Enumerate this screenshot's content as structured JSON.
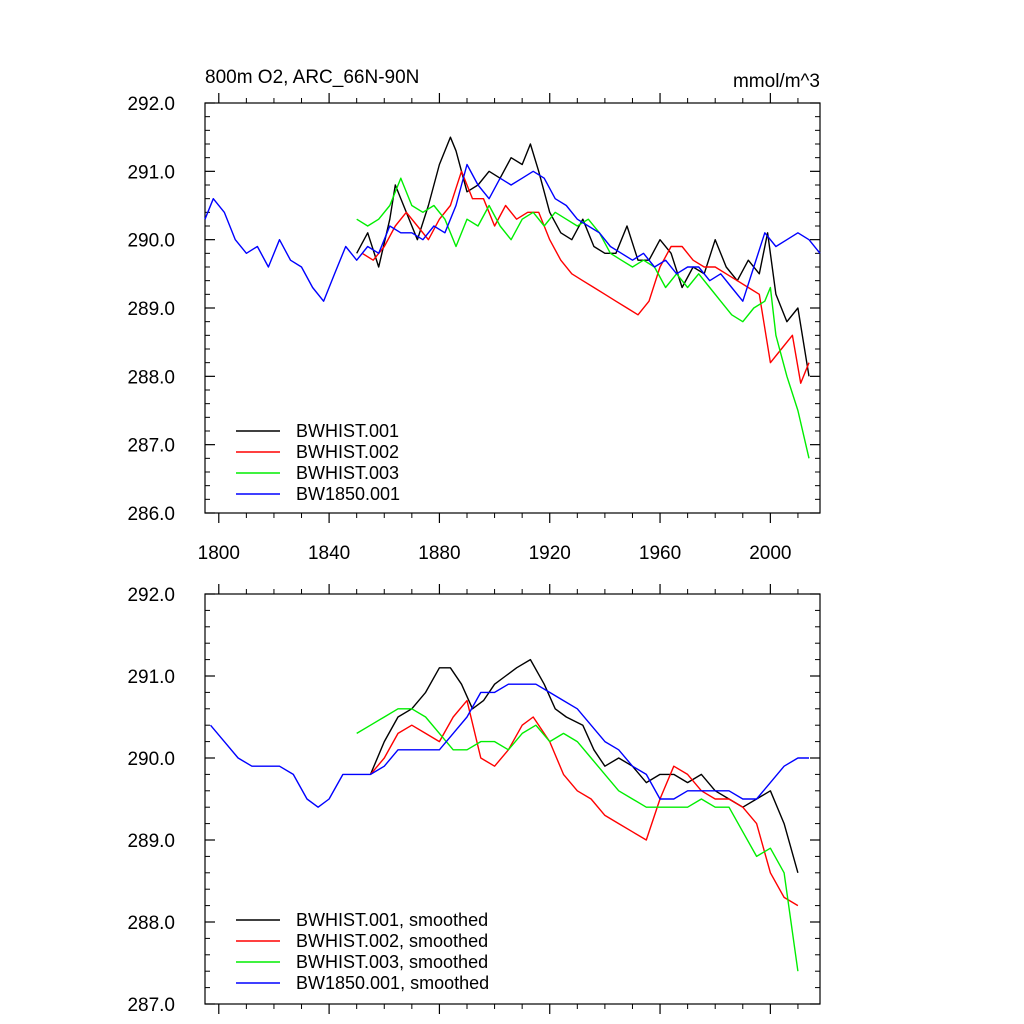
{
  "chart_data": [
    {
      "type": "line",
      "title": "800m O2, ARC_66N-90N",
      "units": "mmol/m^3",
      "xlim": [
        1795,
        2018
      ],
      "ylim": [
        286.0,
        292.0
      ],
      "xticks": [
        1800,
        1840,
        1880,
        1920,
        1960,
        2000
      ],
      "yticks": [
        286.0,
        287.0,
        288.0,
        289.0,
        290.0,
        291.0,
        292.0
      ],
      "x_tick_labels": [
        "1800",
        "1840",
        "1880",
        "1920",
        "1960",
        "2000"
      ],
      "y_tick_labels": [
        "286.0",
        "287.0",
        "288.0",
        "289.0",
        "290.0",
        "291.0",
        "292.0"
      ],
      "legend_position": "bottom-left",
      "series": [
        {
          "name": "BWHIST.001",
          "color": "#000000",
          "x": [
            1850,
            1854,
            1858,
            1862,
            1864,
            1868,
            1872,
            1876,
            1880,
            1884,
            1886,
            1890,
            1894,
            1898,
            1902,
            1906,
            1910,
            1913,
            1916,
            1920,
            1924,
            1928,
            1932,
            1936,
            1940,
            1944,
            1948,
            1952,
            1956,
            1960,
            1964,
            1968,
            1972,
            1976,
            1980,
            1984,
            1988,
            1992,
            1996,
            1999,
            2002,
            2006,
            2010,
            2014
          ],
          "y": [
            289.8,
            290.1,
            289.6,
            290.3,
            290.8,
            290.4,
            290.0,
            290.5,
            291.1,
            291.5,
            291.3,
            290.7,
            290.8,
            291.0,
            290.9,
            291.2,
            291.1,
            291.4,
            291.0,
            290.4,
            290.1,
            290.0,
            290.3,
            289.9,
            289.8,
            289.8,
            290.2,
            289.7,
            289.7,
            290.0,
            289.8,
            289.3,
            289.6,
            289.5,
            290.0,
            289.6,
            289.4,
            289.7,
            289.5,
            290.1,
            289.2,
            288.8,
            289.0,
            288.0
          ]
        },
        {
          "name": "BWHIST.002",
          "color": "#ff0000",
          "x": [
            1852,
            1856,
            1860,
            1864,
            1868,
            1872,
            1876,
            1880,
            1884,
            1888,
            1892,
            1896,
            1900,
            1904,
            1908,
            1912,
            1916,
            1920,
            1924,
            1928,
            1932,
            1936,
            1940,
            1944,
            1948,
            1952,
            1956,
            1960,
            1964,
            1968,
            1972,
            1976,
            1980,
            1984,
            1988,
            1992,
            1996,
            2000,
            2004,
            2008,
            2011,
            2014
          ],
          "y": [
            289.8,
            289.7,
            289.9,
            290.2,
            290.4,
            290.2,
            290.0,
            290.3,
            290.5,
            291.0,
            290.6,
            290.6,
            290.2,
            290.5,
            290.3,
            290.4,
            290.4,
            290.0,
            289.7,
            289.5,
            289.4,
            289.3,
            289.2,
            289.1,
            289.0,
            288.9,
            289.1,
            289.6,
            289.9,
            289.9,
            289.7,
            289.6,
            289.6,
            289.5,
            289.4,
            289.3,
            289.2,
            288.2,
            288.4,
            288.6,
            287.9,
            288.2
          ]
        },
        {
          "name": "BWHIST.003",
          "color": "#00ee00",
          "x": [
            1850,
            1854,
            1858,
            1862,
            1866,
            1870,
            1874,
            1878,
            1882,
            1886,
            1890,
            1894,
            1898,
            1902,
            1906,
            1910,
            1914,
            1918,
            1922,
            1926,
            1930,
            1934,
            1938,
            1942,
            1946,
            1950,
            1954,
            1958,
            1962,
            1966,
            1970,
            1974,
            1978,
            1982,
            1986,
            1990,
            1994,
            1998,
            2000,
            2002,
            2006,
            2010,
            2014
          ],
          "y": [
            290.3,
            290.2,
            290.3,
            290.5,
            290.9,
            290.5,
            290.4,
            290.5,
            290.3,
            289.9,
            290.3,
            290.2,
            290.5,
            290.2,
            290.0,
            290.3,
            290.4,
            290.2,
            290.4,
            290.3,
            290.2,
            290.3,
            290.1,
            289.8,
            289.7,
            289.6,
            289.7,
            289.6,
            289.3,
            289.5,
            289.3,
            289.5,
            289.3,
            289.1,
            288.9,
            288.8,
            289.0,
            289.1,
            289.3,
            288.6,
            288.0,
            287.5,
            286.8
          ]
        },
        {
          "name": "BW1850.001",
          "color": "#0000ff",
          "x": [
            1795,
            1798,
            1802,
            1806,
            1810,
            1814,
            1818,
            1822,
            1826,
            1830,
            1834,
            1838,
            1842,
            1846,
            1850,
            1854,
            1858,
            1862,
            1866,
            1870,
            1874,
            1878,
            1882,
            1886,
            1890,
            1894,
            1898,
            1902,
            1906,
            1910,
            1914,
            1918,
            1922,
            1926,
            1930,
            1934,
            1938,
            1942,
            1946,
            1950,
            1954,
            1958,
            1962,
            1966,
            1970,
            1974,
            1978,
            1982,
            1986,
            1990,
            1994,
            1998,
            2002,
            2006,
            2010,
            2014,
            2018
          ],
          "y": [
            290.3,
            290.6,
            290.4,
            290.0,
            289.8,
            289.9,
            289.6,
            290.0,
            289.7,
            289.6,
            289.3,
            289.1,
            289.5,
            289.9,
            289.7,
            289.9,
            289.8,
            290.2,
            290.1,
            290.1,
            290.0,
            290.2,
            290.1,
            290.5,
            291.1,
            290.8,
            290.6,
            290.9,
            290.8,
            290.9,
            291.0,
            290.9,
            290.6,
            290.5,
            290.3,
            290.2,
            290.1,
            289.9,
            289.8,
            289.7,
            289.8,
            289.6,
            289.7,
            289.5,
            289.6,
            289.6,
            289.4,
            289.5,
            289.3,
            289.1,
            289.6,
            290.1,
            289.9,
            290.0,
            290.1,
            290.0,
            289.8
          ]
        }
      ]
    },
    {
      "type": "line",
      "xlim": [
        1795,
        2018
      ],
      "ylim": [
        287.0,
        292.0
      ],
      "xticks": [
        1800,
        1840,
        1880,
        1920,
        1960,
        2000
      ],
      "yticks": [
        287.0,
        288.0,
        289.0,
        290.0,
        291.0,
        292.0
      ],
      "y_tick_labels": [
        "287.0",
        "288.0",
        "289.0",
        "290.0",
        "291.0",
        "292.0"
      ],
      "legend_position": "bottom-left",
      "series": [
        {
          "name": "BWHIST.001, smoothed",
          "color": "#000000",
          "x": [
            1855,
            1860,
            1865,
            1870,
            1875,
            1880,
            1884,
            1888,
            1892,
            1896,
            1900,
            1904,
            1908,
            1913,
            1918,
            1922,
            1926,
            1932,
            1936,
            1940,
            1945,
            1950,
            1955,
            1960,
            1965,
            1970,
            1975,
            1980,
            1985,
            1990,
            1995,
            2000,
            2005,
            2010
          ],
          "y": [
            289.8,
            290.2,
            290.5,
            290.6,
            290.8,
            291.1,
            291.1,
            290.9,
            290.6,
            290.7,
            290.9,
            291.0,
            291.1,
            291.2,
            290.9,
            290.6,
            290.5,
            290.4,
            290.1,
            289.9,
            290.0,
            289.9,
            289.7,
            289.8,
            289.8,
            289.7,
            289.8,
            289.6,
            289.5,
            289.4,
            289.5,
            289.6,
            289.2,
            288.6
          ]
        },
        {
          "name": "BWHIST.002, smoothed",
          "color": "#ff0000",
          "x": [
            1855,
            1860,
            1865,
            1870,
            1875,
            1880,
            1885,
            1890,
            1895,
            1900,
            1905,
            1910,
            1914,
            1920,
            1925,
            1930,
            1935,
            1940,
            1945,
            1950,
            1955,
            1960,
            1965,
            1970,
            1975,
            1980,
            1985,
            1990,
            1995,
            2000,
            2005,
            2010
          ],
          "y": [
            289.8,
            290.0,
            290.3,
            290.4,
            290.3,
            290.2,
            290.5,
            290.7,
            290.0,
            289.9,
            290.1,
            290.4,
            290.5,
            290.2,
            289.8,
            289.6,
            289.5,
            289.3,
            289.2,
            289.1,
            289.0,
            289.5,
            289.9,
            289.8,
            289.6,
            289.5,
            289.5,
            289.4,
            289.2,
            288.6,
            288.3,
            288.2
          ]
        },
        {
          "name": "BWHIST.003, smoothed",
          "color": "#00ee00",
          "x": [
            1850,
            1855,
            1860,
            1865,
            1870,
            1875,
            1880,
            1885,
            1890,
            1895,
            1900,
            1905,
            1910,
            1915,
            1920,
            1925,
            1930,
            1935,
            1940,
            1945,
            1950,
            1955,
            1960,
            1965,
            1970,
            1975,
            1980,
            1985,
            1990,
            1995,
            2000,
            2005,
            2010
          ],
          "y": [
            290.3,
            290.4,
            290.5,
            290.6,
            290.6,
            290.5,
            290.3,
            290.1,
            290.1,
            290.2,
            290.2,
            290.1,
            290.3,
            290.4,
            290.2,
            290.3,
            290.2,
            290.0,
            289.8,
            289.6,
            289.5,
            289.4,
            289.4,
            289.4,
            289.4,
            289.5,
            289.4,
            289.4,
            289.1,
            288.8,
            288.9,
            288.6,
            287.4
          ]
        },
        {
          "name": "BW1850.001, smoothed",
          "color": "#0000ff",
          "x": [
            1797,
            1802,
            1807,
            1812,
            1817,
            1822,
            1827,
            1832,
            1836,
            1840,
            1845,
            1850,
            1855,
            1860,
            1865,
            1870,
            1875,
            1880,
            1885,
            1890,
            1895,
            1900,
            1905,
            1910,
            1915,
            1920,
            1925,
            1930,
            1935,
            1940,
            1945,
            1950,
            1955,
            1960,
            1965,
            1970,
            1975,
            1980,
            1985,
            1990,
            1995,
            2000,
            2005,
            2010,
            2014
          ],
          "y": [
            290.4,
            290.2,
            290.0,
            289.9,
            289.9,
            289.9,
            289.8,
            289.5,
            289.4,
            289.5,
            289.8,
            289.8,
            289.8,
            289.9,
            290.1,
            290.1,
            290.1,
            290.1,
            290.3,
            290.5,
            290.8,
            290.8,
            290.9,
            290.9,
            290.9,
            290.8,
            290.7,
            290.6,
            290.4,
            290.2,
            290.1,
            289.9,
            289.8,
            289.5,
            289.5,
            289.6,
            289.6,
            289.6,
            289.6,
            289.5,
            289.5,
            289.7,
            289.9,
            290.0,
            290.0
          ]
        }
      ]
    }
  ]
}
